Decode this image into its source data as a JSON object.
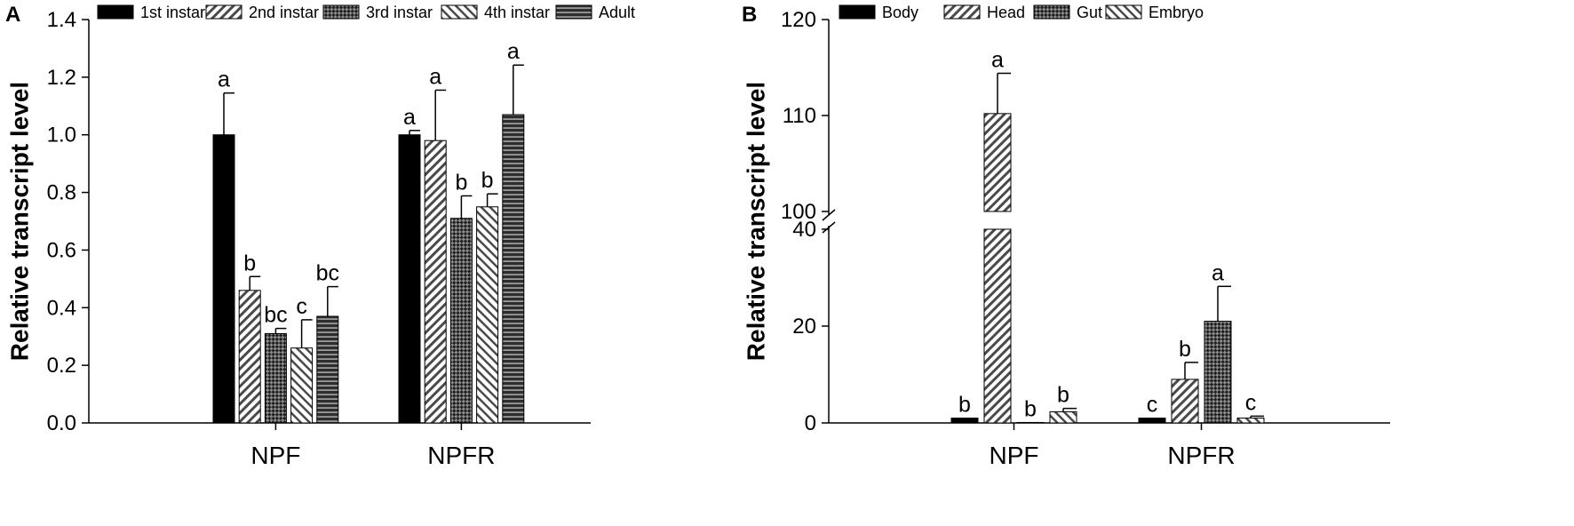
{
  "chart_data": [
    {
      "panel": "A",
      "type": "bar",
      "ylabel": "Relative transcript level",
      "ylim": [
        0,
        1.4
      ],
      "yticks": [
        "0.0",
        "0.2",
        "0.4",
        "0.6",
        "0.8",
        "1.0",
        "1.2",
        "1.4"
      ],
      "categories": [
        "NPF",
        "NPFR"
      ],
      "legend_position": "top",
      "series": [
        {
          "name": "1st instar",
          "pattern": "solid",
          "values": [
            1.0,
            1.0
          ],
          "errors": [
            0.145,
            0.015
          ],
          "labels": [
            "a",
            "a"
          ]
        },
        {
          "name": "2nd instar",
          "pattern": "diagonal",
          "values": [
            0.46,
            0.98
          ],
          "errors": [
            0.048,
            0.175
          ],
          "labels": [
            "b",
            "a"
          ]
        },
        {
          "name": "3rd instar",
          "pattern": "crosshatch",
          "values": [
            0.31,
            0.71
          ],
          "errors": [
            0.018,
            0.078
          ],
          "labels": [
            "bc",
            "b"
          ]
        },
        {
          "name": "4th  instar",
          "pattern": "reverse-diagonal",
          "values": [
            0.26,
            0.75
          ],
          "errors": [
            0.098,
            0.045
          ],
          "labels": [
            "c",
            "b"
          ]
        },
        {
          "name": "Adult",
          "pattern": "horizontal",
          "values": [
            0.37,
            1.07
          ],
          "errors": [
            0.103,
            0.172
          ],
          "labels": [
            "bc",
            "a"
          ]
        }
      ]
    },
    {
      "panel": "B",
      "type": "bar",
      "ylabel": "Relative transcript level",
      "y_axis_break": [
        40,
        100
      ],
      "ylim": [
        0,
        120
      ],
      "yticks": [
        "0",
        "20",
        "40",
        "100",
        "110",
        "120"
      ],
      "categories": [
        "NPF",
        "NPFR"
      ],
      "legend_position": "top",
      "series": [
        {
          "name": "Body",
          "pattern": "solid",
          "values": [
            1.0,
            1.0
          ],
          "errors": [
            0,
            0
          ],
          "labels": [
            "b",
            "c"
          ]
        },
        {
          "name": "Head",
          "pattern": "diagonal",
          "values": [
            110.2,
            9.0
          ],
          "errors": [
            4.2,
            3.5
          ],
          "labels": [
            "a",
            "b"
          ]
        },
        {
          "name": "Gut",
          "pattern": "crosshatch",
          "values": [
            0.1,
            21.0
          ],
          "errors": [
            0,
            7.2
          ],
          "labels": [
            "b",
            "a"
          ]
        },
        {
          "name": "Embryo",
          "pattern": "reverse-diagonal",
          "values": [
            2.3,
            1.0
          ],
          "errors": [
            0.7,
            0.4
          ],
          "labels": [
            "b",
            "c"
          ]
        }
      ]
    }
  ]
}
